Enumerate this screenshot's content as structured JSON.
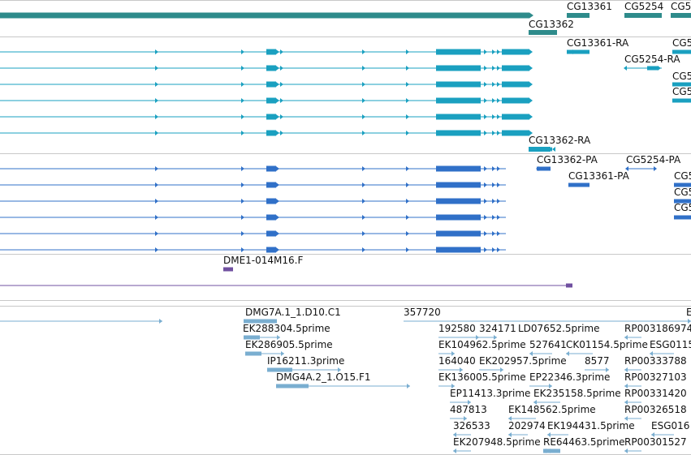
{
  "colors": {
    "gene": "#2e8b8b",
    "transcript": "#1aa0c0",
    "protein": "#3070c8",
    "clone": "#7050a0",
    "est": "#7aaed0",
    "separator": "#c8c8c8"
  },
  "tracks": {
    "genes": {
      "labels": [
        "CG13361",
        "CG5254",
        "CG5",
        "CG13362"
      ]
    },
    "transcripts": {
      "labels": [
        "CG13361-RA",
        "CG5",
        "CG5254-RA",
        "CG5",
        "CG5",
        "CG13362-RA"
      ]
    },
    "proteins": {
      "labels": [
        "CG13362-PA",
        "CG5254-PA",
        "CG13361-PA",
        "CG5",
        "CG5",
        "CG5"
      ]
    },
    "clones": {
      "labels": [
        "DME1-014M16.F"
      ]
    },
    "ests": {
      "labels": [
        "DMG7A.1_1.D10.C1",
        "357720",
        "E",
        "EK288304.5prime",
        "192580",
        "324171",
        "LD07652.5prime",
        "RP003186974",
        "EK286905.5prime",
        "EK104962.5prime",
        "527641",
        "CK01154.5prime",
        "ESG0115",
        "IP16211.3prime",
        "164040",
        "EK202957.5prime",
        "8577",
        "RP00333788",
        "DMG4A.2_1.O15.F1",
        "EK136005.5prime",
        "EP22346.3prime",
        "RP00327103",
        "EP11413.3prime",
        "EK235158.5prime",
        "RP00331420",
        "487813",
        "EK148562.5prime",
        "RP00326518",
        "326533",
        "202974",
        "EK194431.5prime",
        "ESG016",
        "EK207948.5prime",
        "RE64463.5prime",
        "RP00301527"
      ]
    }
  }
}
